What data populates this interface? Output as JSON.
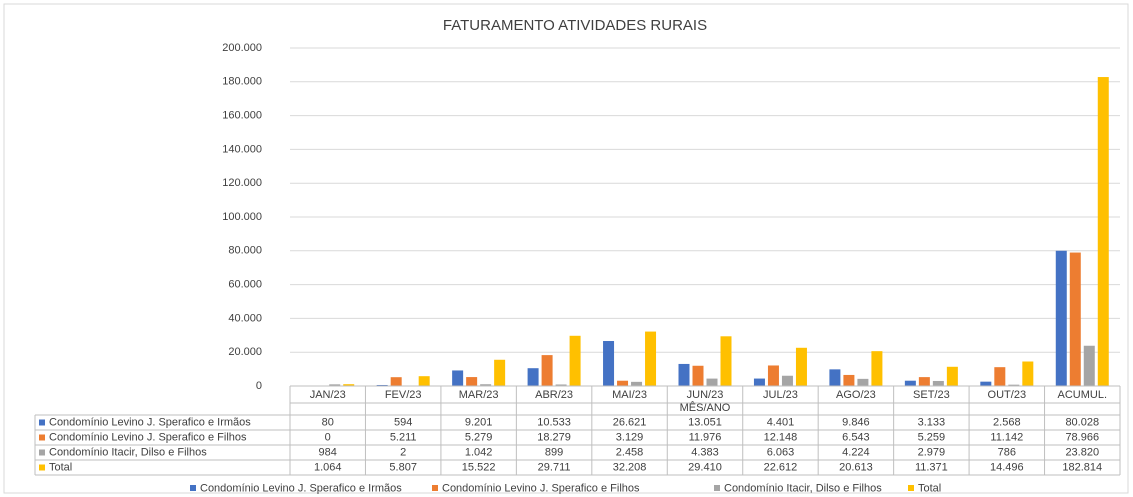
{
  "chart_data": {
    "type": "bar",
    "title": "FATURAMENTO ATIVIDADES RURAIS",
    "x_label": "MÊS/ANO",
    "categories": [
      "JAN/23",
      "FEV/23",
      "MAR/23",
      "ABR/23",
      "MAI/23",
      "JUN/23",
      "JUL/23",
      "AGO/23",
      "SET/23",
      "OUT/23",
      "ACUMUL."
    ],
    "series": [
      {
        "name": "Condomínio Levino J. Sperafico e Irmãos",
        "color": "#4472c4",
        "values": [
          80,
          594,
          9201,
          10533,
          26621,
          13051,
          4401,
          9846,
          3133,
          2568,
          80028
        ],
        "value_labels": [
          "80",
          "594",
          "9.201",
          "10.533",
          "26.621",
          "13.051",
          "4.401",
          "9.846",
          "3.133",
          "2.568",
          "80.028"
        ]
      },
      {
        "name": "Condomínio Levino J. Sperafico e Filhos",
        "color": "#ed7d31",
        "values": [
          0,
          5211,
          5279,
          18279,
          3129,
          11976,
          12148,
          6543,
          5259,
          11142,
          78966
        ],
        "value_labels": [
          "0",
          "5.211",
          "5.279",
          "18.279",
          "3.129",
          "11.976",
          "12.148",
          "6.543",
          "5.259",
          "11.142",
          "78.966"
        ]
      },
      {
        "name": "Condomínio Itacir, Dilso e Filhos",
        "color": "#a5a5a5",
        "values": [
          984,
          2,
          1042,
          899,
          2458,
          4383,
          6063,
          4224,
          2979,
          786,
          23820
        ],
        "value_labels": [
          "984",
          "2",
          "1.042",
          "899",
          "2.458",
          "4.383",
          "6.063",
          "4.224",
          "2.979",
          "786",
          "23.820"
        ]
      },
      {
        "name": "Total",
        "color": "#ffc000",
        "values": [
          1064,
          5807,
          15522,
          29711,
          32208,
          29410,
          22612,
          20613,
          11371,
          14496,
          182814
        ],
        "value_labels": [
          "1.064",
          "5.807",
          "15.522",
          "29.711",
          "32.208",
          "29.410",
          "22.612",
          "20.613",
          "11.371",
          "14.496",
          "182.814"
        ]
      }
    ],
    "ylim": [
      0,
      200000
    ],
    "yticks": [
      0,
      {
        "value": 20000,
        "label": "20.000"
      },
      {
        "value": 40000,
        "label": "40.000"
      },
      {
        "value": 60000,
        "label": "60.000"
      },
      {
        "value": 80000,
        "label": "80.000"
      },
      {
        "value": 100000,
        "label": "100.000"
      },
      {
        "value": 120000,
        "label": "120.000"
      },
      {
        "value": 140000,
        "label": "140.000"
      },
      {
        "value": 160000,
        "label": "160.000"
      },
      {
        "value": 180000,
        "label": "180.000"
      },
      {
        "value": 200000,
        "label": "200.000"
      }
    ],
    "grid": true
  }
}
